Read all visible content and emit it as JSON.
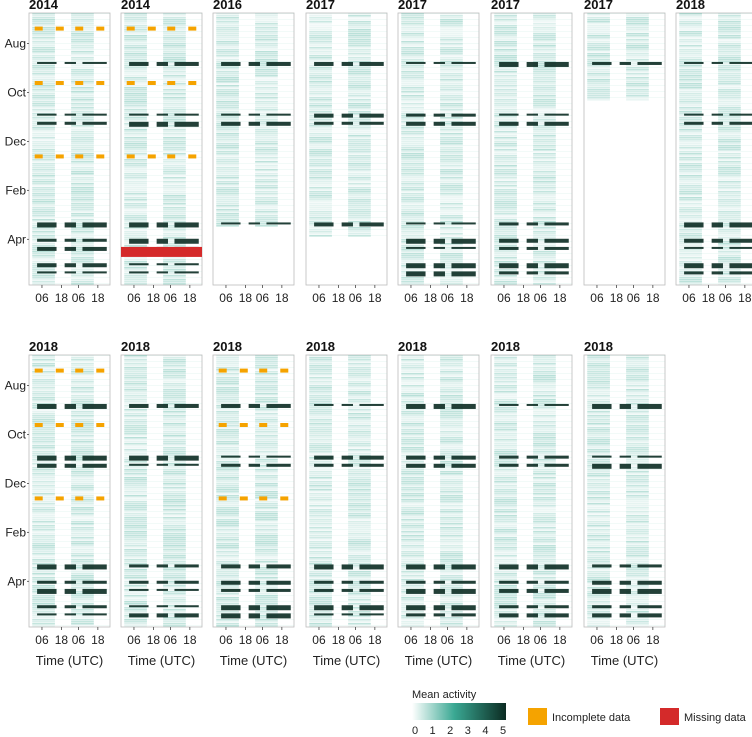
{
  "chart_data": {
    "type": "heatmap",
    "description_axes": {
      "y_tick_labels": [
        "Aug",
        "Oct",
        "Dec",
        "Feb",
        "Apr"
      ],
      "x_tick_labels": [
        "06",
        "18",
        "06",
        "18"
      ],
      "xlabel": "Time (UTC)"
    },
    "panels_row1": [
      {
        "year": "2014",
        "end_frac": 1.0,
        "incomplete": true,
        "missing": false
      },
      {
        "year": "2014",
        "end_frac": 1.0,
        "incomplete": true,
        "missing": true
      },
      {
        "year": "2016",
        "end_frac": 0.78,
        "incomplete": false,
        "missing": false
      },
      {
        "year": "2017",
        "end_frac": 0.82,
        "incomplete": false,
        "missing": false
      },
      {
        "year": "2017",
        "end_frac": 1.0,
        "incomplete": false,
        "missing": false
      },
      {
        "year": "2017",
        "end_frac": 1.0,
        "incomplete": false,
        "missing": false
      },
      {
        "year": "2017",
        "end_frac": 0.32,
        "incomplete": false,
        "missing": false
      },
      {
        "year": "2018",
        "end_frac": 1.0,
        "incomplete": false,
        "missing": false
      }
    ],
    "panels_row2": [
      {
        "year": "2018",
        "end_frac": 1.0,
        "incomplete": true,
        "missing": false
      },
      {
        "year": "2018",
        "end_frac": 1.0,
        "incomplete": false,
        "missing": false
      },
      {
        "year": "2018",
        "end_frac": 1.0,
        "incomplete": true,
        "missing": false
      },
      {
        "year": "2018",
        "end_frac": 1.0,
        "incomplete": false,
        "missing": false
      },
      {
        "year": "2018",
        "end_frac": 1.0,
        "incomplete": false,
        "missing": false
      },
      {
        "year": "2018",
        "end_frac": 1.0,
        "incomplete": false,
        "missing": false
      },
      {
        "year": "2018",
        "end_frac": 1.0,
        "incomplete": false,
        "missing": false
      }
    ],
    "legend": {
      "colorbar_title": "Mean activity",
      "colorbar_ticks": [
        "0",
        "1",
        "2",
        "3",
        "4",
        "5"
      ],
      "colorbar_range": [
        0,
        5
      ],
      "colorbar_low_color": "#ffffff",
      "colorbar_mid_color": "#3aa893",
      "colorbar_high_color": "#0b2b22",
      "incomplete_label": "Incomplete data",
      "incomplete_color": "#f5a300",
      "missing_label": "Missing data",
      "missing_color": "#d42a2a"
    }
  }
}
